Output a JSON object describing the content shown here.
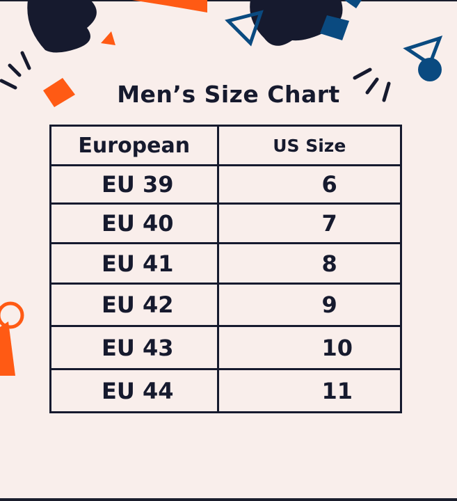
{
  "title": "Men’s Size Chart",
  "colors": {
    "background": "#f9eeeb",
    "dark": "#161a2e",
    "orange": "#ff5a14",
    "blue": "#0a4a80"
  },
  "table": {
    "headers": [
      "European",
      "US Size"
    ],
    "rows": [
      [
        "EU 39",
        "6"
      ],
      [
        "EU 40",
        "7"
      ],
      [
        "EU 41",
        "8"
      ],
      [
        "EU 42",
        "9"
      ],
      [
        "EU 43",
        "10"
      ],
      [
        "EU 44",
        "11"
      ]
    ]
  }
}
